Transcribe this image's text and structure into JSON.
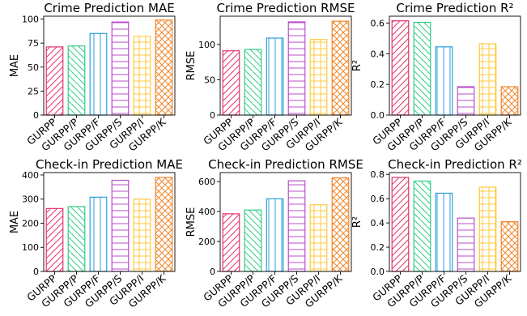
{
  "colors": {
    "GURPP": "#e8336b",
    "GURPP/P": "#2ecc85",
    "GURPP/F": "#2d9fd8",
    "GURPP/S": "#b84fc8",
    "GURPP/I": "#ffc83d",
    "GURPP/K": "#f0862b"
  },
  "patterns": [
    "/",
    "\\",
    "|",
    "-",
    "+",
    "x"
  ],
  "chart_data": [
    {
      "type": "bar",
      "title": "Crime Prediction MAE",
      "ylabel": "MAE",
      "categories": [
        "GURPP",
        "GURPP/P",
        "GURPP/F",
        "GURPP/S",
        "GURPP/I",
        "GURPP/K"
      ],
      "values": [
        71,
        72,
        85,
        97,
        82,
        99
      ],
      "ylim": [
        0,
        103
      ],
      "yticks": [
        0,
        25,
        50,
        75,
        100
      ]
    },
    {
      "type": "bar",
      "title": "Crime Prediction RMSE",
      "ylabel": "RMSE",
      "categories": [
        "GURPP",
        "GURPP/P",
        "GURPP/F",
        "GURPP/S",
        "GURPP/I",
        "GURPP/K"
      ],
      "values": [
        91,
        93,
        109,
        132,
        107,
        133
      ],
      "ylim": [
        0,
        140
      ],
      "yticks": [
        0,
        50,
        100
      ]
    },
    {
      "type": "bar",
      "title": "Crime Prediction R²",
      "ylabel": "R²",
      "categories": [
        "GURPP",
        "GURPP/P",
        "GURPP/F",
        "GURPP/S",
        "GURPP/I",
        "GURPP/K"
      ],
      "values": [
        0.615,
        0.605,
        0.445,
        0.185,
        0.465,
        0.185
      ],
      "ylim": [
        0,
        0.645
      ],
      "yticks": [
        "0.0",
        "0.2",
        "0.4",
        "0.6"
      ]
    },
    {
      "type": "bar",
      "title": "Check-in Prediction MAE",
      "ylabel": "MAE",
      "categories": [
        "GURPP",
        "GURPP/P",
        "GURPP/F",
        "GURPP/S",
        "GURPP/I",
        "GURPP/K"
      ],
      "values": [
        261,
        269,
        308,
        378,
        300,
        390
      ],
      "ylim": [
        0,
        410
      ],
      "yticks": [
        0,
        100,
        200,
        300,
        400
      ]
    },
    {
      "type": "bar",
      "title": "Check-in Prediction RMSE",
      "ylabel": "RMSE",
      "categories": [
        "GURPP",
        "GURPP/P",
        "GURPP/F",
        "GURPP/S",
        "GURPP/I",
        "GURPP/K"
      ],
      "values": [
        385,
        410,
        485,
        605,
        445,
        625
      ],
      "ylim": [
        0,
        660
      ],
      "yticks": [
        0,
        200,
        400,
        600
      ]
    },
    {
      "type": "bar",
      "title": "Check-in Prediction R²",
      "ylabel": "R²",
      "categories": [
        "GURPP",
        "GURPP/P",
        "GURPP/F",
        "GURPP/S",
        "GURPP/I",
        "GURPP/K"
      ],
      "values": [
        0.775,
        0.745,
        0.645,
        0.44,
        0.695,
        0.41
      ],
      "ylim": [
        0,
        0.815
      ],
      "yticks": [
        "0.0",
        "0.2",
        "0.4",
        "0.6",
        "0.8"
      ]
    }
  ]
}
